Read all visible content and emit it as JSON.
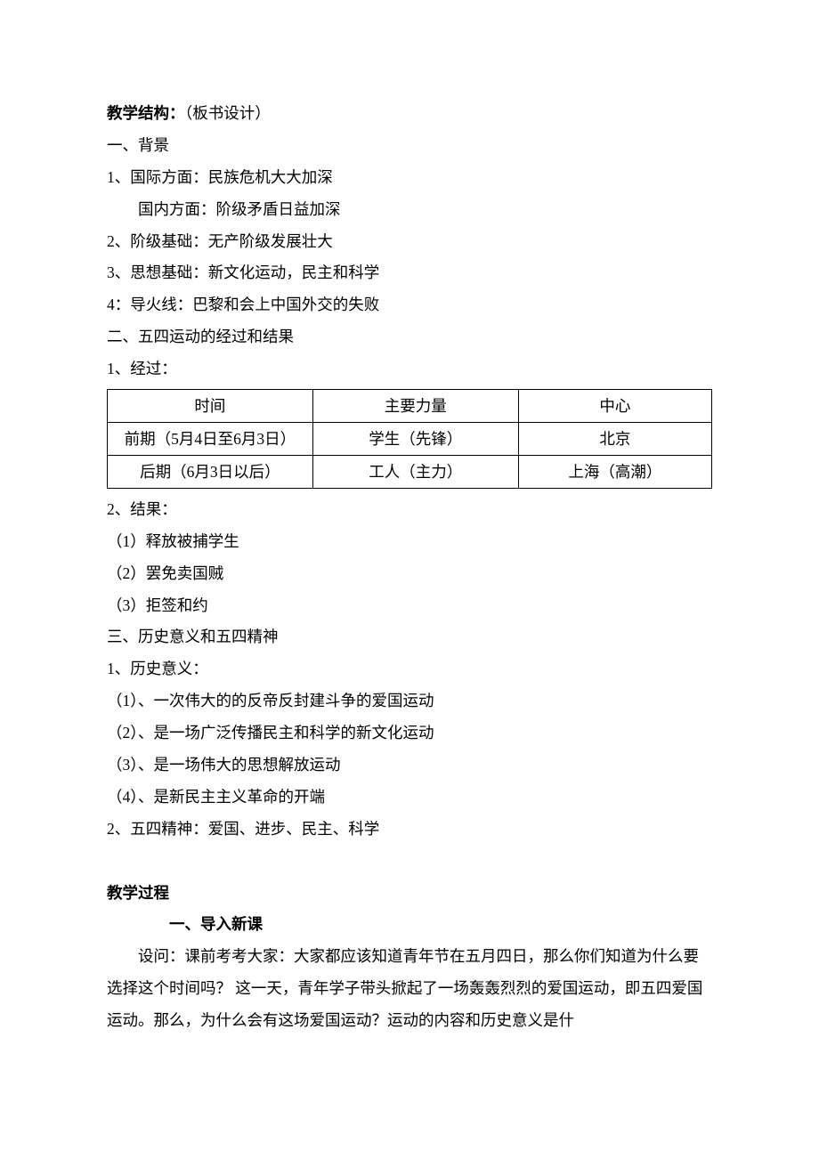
{
  "title_label": "教学结构：",
  "title_note": "（板书设计）",
  "s1": {
    "heading": "一、背景",
    "i1a": "1、国际方面：民族危机大大加深",
    "i1b": "国内方面：阶级矛盾日益加深",
    "i2": "2、阶级基础：无产阶级发展壮大",
    "i3": "3、思想基础：新文化运动，民主和科学",
    "i4": "4：导火线：巴黎和会上中国外交的失败"
  },
  "s2": {
    "heading": "二、五四运动的经过和结果",
    "sub1": "1、经过：",
    "table": {
      "h1": "时间",
      "h2": "主要力量",
      "h3": "中心",
      "r1c1": "前期（5月4日至6月3日）",
      "r1c2": "学生（先锋）",
      "r1c3": "北京",
      "r2c1": "后期（6月3日以后）",
      "r2c2": "工人（主力）",
      "r2c3": "上海（高潮）"
    },
    "sub2": "2、结果：",
    "res1": "（1）释放被捕学生",
    "res2": "（2）罢免卖国贼",
    "res3": "（3）拒签和约"
  },
  "s3": {
    "heading": "三、历史意义和五四精神",
    "sub1": "1、历史意义：",
    "m1": "（1）、一次伟大的的反帝反封建斗争的爱国运动",
    "m2": "（2）、是一场广泛传播民主和科学的新文化运动",
    "m3": "（3）、是一场伟大的思想解放运动",
    "m4": "（4）、是新民主主义革命的开端",
    "sub2": "2、五四精神：爱国、进步、民主、科学"
  },
  "proc": {
    "heading": "教学过程",
    "sub": "一、导入新课",
    "p1": "设问：课前考考大家：大家都应该知道青年节在五月四日，那么你们知道为什么要选择这个时间吗？  这一天，青年学子带头掀起了一场轰轰烈烈的爱国运动，即五四爱国运动。那么，为什么会有这场爱国运动？运动的内容和历史意义是什"
  }
}
